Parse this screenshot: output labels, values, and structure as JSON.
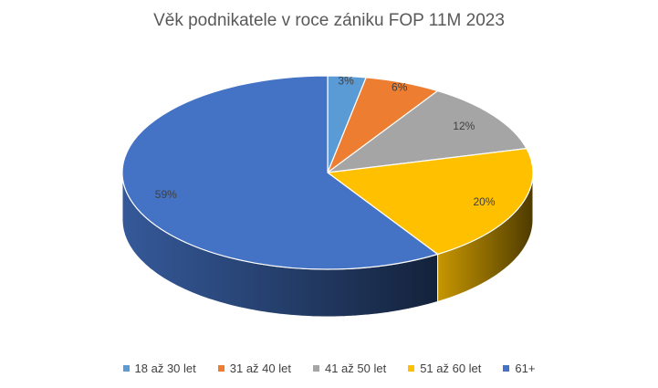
{
  "chart_data": {
    "type": "pie",
    "title": "Věk podnikatele v roce zániku FOP 11M 2023",
    "categories": [
      "18 až 30 let",
      "31 až 40 let",
      "41 až 50 let",
      "51 až 60 let",
      "61+"
    ],
    "values": [
      3,
      6,
      12,
      20,
      59
    ],
    "labels": [
      "3%",
      "6%",
      "12%",
      "20%",
      "59%"
    ],
    "colors": [
      "#5B9BD5",
      "#ED7D31",
      "#A5A5A5",
      "#FFC000",
      "#4472C4"
    ],
    "legend_position": "bottom",
    "style": "3d-pie"
  }
}
